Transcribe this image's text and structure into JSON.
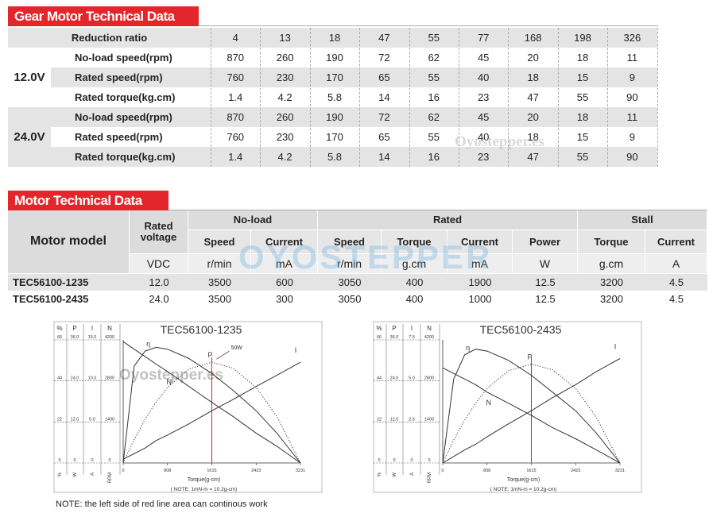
{
  "gear_table": {
    "title": "Gear Motor Technical Data",
    "header": "Reduction ratio",
    "ratios": [
      "4",
      "13",
      "18",
      "47",
      "55",
      "77",
      "168",
      "198",
      "326"
    ],
    "groups": [
      {
        "voltage": "12.0V",
        "rows": [
          {
            "label": "No-load speed(rpm)",
            "values": [
              "870",
              "260",
              "190",
              "72",
              "62",
              "45",
              "20",
              "18",
              "11"
            ]
          },
          {
            "label": "Rated speed(rpm)",
            "values": [
              "760",
              "230",
              "170",
              "65",
              "55",
              "40",
              "18",
              "15",
              "9"
            ]
          },
          {
            "label": "Rated torque(kg.cm)",
            "values": [
              "1.4",
              "4.2",
              "5.8",
              "14",
              "16",
              "23",
              "47",
              "55",
              "90"
            ]
          }
        ]
      },
      {
        "voltage": "24.0V",
        "rows": [
          {
            "label": "No-load speed(rpm)",
            "values": [
              "870",
              "260",
              "190",
              "72",
              "62",
              "45",
              "20",
              "18",
              "11"
            ]
          },
          {
            "label": "Rated speed(rpm)",
            "values": [
              "760",
              "230",
              "170",
              "65",
              "55",
              "40",
              "18",
              "15",
              "9"
            ]
          },
          {
            "label": "Rated torque(kg.cm)",
            "values": [
              "1.4",
              "4.2",
              "5.8",
              "14",
              "16",
              "23",
              "47",
              "55",
              "90"
            ]
          }
        ]
      }
    ]
  },
  "motor_table": {
    "title": "Motor Technical Data",
    "model_header": "Motor model",
    "voltage_header": "Rated voltage",
    "voltage_unit": "VDC",
    "groups": [
      {
        "name": "No-load",
        "columns": [
          {
            "name": "Speed",
            "unit": "r/min"
          },
          {
            "name": "Current",
            "unit": "mA"
          }
        ]
      },
      {
        "name": "Rated",
        "columns": [
          {
            "name": "Speed",
            "unit": "r/min"
          },
          {
            "name": "Torque",
            "unit": "g.cm"
          },
          {
            "name": "Current",
            "unit": "mA"
          },
          {
            "name": "Power",
            "unit": "W"
          }
        ]
      },
      {
        "name": "Stall",
        "columns": [
          {
            "name": "Torque",
            "unit": "g.cm"
          },
          {
            "name": "Current",
            "unit": "A"
          }
        ]
      }
    ],
    "rows": [
      {
        "model": "TEC56100-1235",
        "voltage": "12.0",
        "values": [
          "3500",
          "600",
          "3050",
          "400",
          "1900",
          "12.5",
          "3200",
          "4.5"
        ]
      },
      {
        "model": "TEC56100-2435",
        "voltage": "24.0",
        "values": [
          "3500",
          "300",
          "3050",
          "400",
          "1000",
          "12.5",
          "3200",
          "4.5"
        ]
      }
    ]
  },
  "watermark": "Oyostepper.es",
  "logo_watermark": "OYOSTEPPER",
  "note": "NOTE: the left side of red line area can continous work",
  "chart_data": [
    {
      "type": "line",
      "title": "TEC56100-1235",
      "x_label": "Torque(g-cm)",
      "unit_note": "( NOTE: 1mN-m = 10.2g-cm)",
      "annotation": "50W",
      "red_line": 1615,
      "xlim": [
        0,
        3231
      ],
      "xticks": [
        0,
        808,
        1615,
        2423,
        3231
      ],
      "ylim": [
        0,
        66
      ],
      "scale_columns": [
        {
          "header": "%",
          "unit": "%",
          "lim": [
            0,
            66
          ],
          "ticks": [
            0,
            22,
            44,
            66
          ]
        },
        {
          "header": "P",
          "unit": "W",
          "lim": [
            0,
            36
          ],
          "ticks": [
            0,
            {
              "value": 12,
              "label": "12.0"
            },
            {
              "value": 24,
              "label": "24.0"
            },
            {
              "value": 36,
              "label": "36.0"
            }
          ]
        },
        {
          "header": "I",
          "unit": "A",
          "lim": [
            0,
            15
          ],
          "ticks": [
            0,
            {
              "value": 5,
              "label": "5.0"
            },
            {
              "value": 10,
              "label": "10.0"
            },
            {
              "value": 15,
              "label": "15.0"
            }
          ]
        },
        {
          "header": "N",
          "unit": "RPM",
          "lim": [
            0,
            4200
          ],
          "ticks": [
            0,
            1400,
            2800,
            4200
          ]
        }
      ],
      "x": [
        0,
        200,
        400,
        600,
        808,
        1200,
        1615,
        2000,
        2423,
        2800,
        3231
      ],
      "series": [
        {
          "name": "η",
          "color": "#333333",
          "style": "solid",
          "values": [
            0,
            52,
            60,
            62,
            61,
            56,
            48,
            39,
            28,
            16,
            0
          ]
        },
        {
          "name": "P",
          "color": "#333333",
          "style": "dotted",
          "values": [
            0,
            12.5,
            23.4,
            32.7,
            40.5,
            50.4,
            54,
            50.9,
            40.5,
            25,
            0
          ]
        },
        {
          "name": "N",
          "color": "#333333",
          "style": "solid",
          "values": [
            65,
            61,
            57,
            53,
            49,
            41,
            32.5,
            25,
            16,
            9,
            0
          ]
        },
        {
          "name": "I",
          "color": "#333333",
          "style": "solid",
          "values": [
            2,
            5,
            8,
            12,
            15,
            21,
            28,
            34,
            41,
            47,
            54
          ]
        }
      ]
    },
    {
      "type": "line",
      "title": "TEC56100-2435",
      "x_label": "Torque(g-cm)",
      "unit_note": "( NOTE: 1mN-m = 10.2g-cm)",
      "red_line": 1615,
      "xlim": [
        0,
        3231
      ],
      "xticks": [
        0,
        808,
        1615,
        2423,
        3231
      ],
      "ylim": [
        0,
        66
      ],
      "scale_columns": [
        {
          "header": "%",
          "unit": "%",
          "lim": [
            0,
            66
          ],
          "ticks": [
            0,
            22,
            44,
            66
          ]
        },
        {
          "header": "P",
          "unit": "W",
          "lim": [
            0,
            36
          ],
          "ticks": [
            0,
            {
              "value": 12,
              "label": "12.0"
            },
            {
              "value": 24,
              "label": "24.0"
            },
            {
              "value": 36,
              "label": "36.0"
            }
          ]
        },
        {
          "header": "I",
          "unit": "A",
          "lim": [
            0,
            7.5
          ],
          "ticks": [
            0,
            {
              "value": 2.5,
              "label": "2.5"
            },
            {
              "value": 5,
              "label": "5.0"
            },
            {
              "value": 7.5,
              "label": "7.5"
            }
          ]
        },
        {
          "header": "N",
          "unit": "RPM",
          "lim": [
            0,
            4200
          ],
          "ticks": [
            0,
            1400,
            2800,
            4200
          ]
        }
      ],
      "x": [
        0,
        200,
        400,
        600,
        808,
        1200,
        1615,
        2000,
        2423,
        2800,
        3231
      ],
      "series": [
        {
          "name": "η",
          "color": "#333333",
          "style": "solid",
          "values": [
            0,
            45,
            58,
            61,
            60,
            55,
            47,
            38,
            28,
            16,
            0
          ]
        },
        {
          "name": "P",
          "color": "#333333",
          "style": "dotted",
          "values": [
            0,
            12.3,
            23,
            32,
            40,
            49.5,
            53,
            50,
            40,
            24.5,
            0
          ]
        },
        {
          "name": "N",
          "color": "#333333",
          "style": "solid",
          "values": [
            51,
            48,
            45,
            42,
            38,
            32,
            25.5,
            19,
            13,
            7,
            0
          ]
        },
        {
          "name": "I",
          "color": "#333333",
          "style": "solid",
          "values": [
            0,
            3.5,
            7,
            10,
            14,
            21,
            28,
            35,
            42,
            49,
            56
          ]
        }
      ]
    }
  ]
}
